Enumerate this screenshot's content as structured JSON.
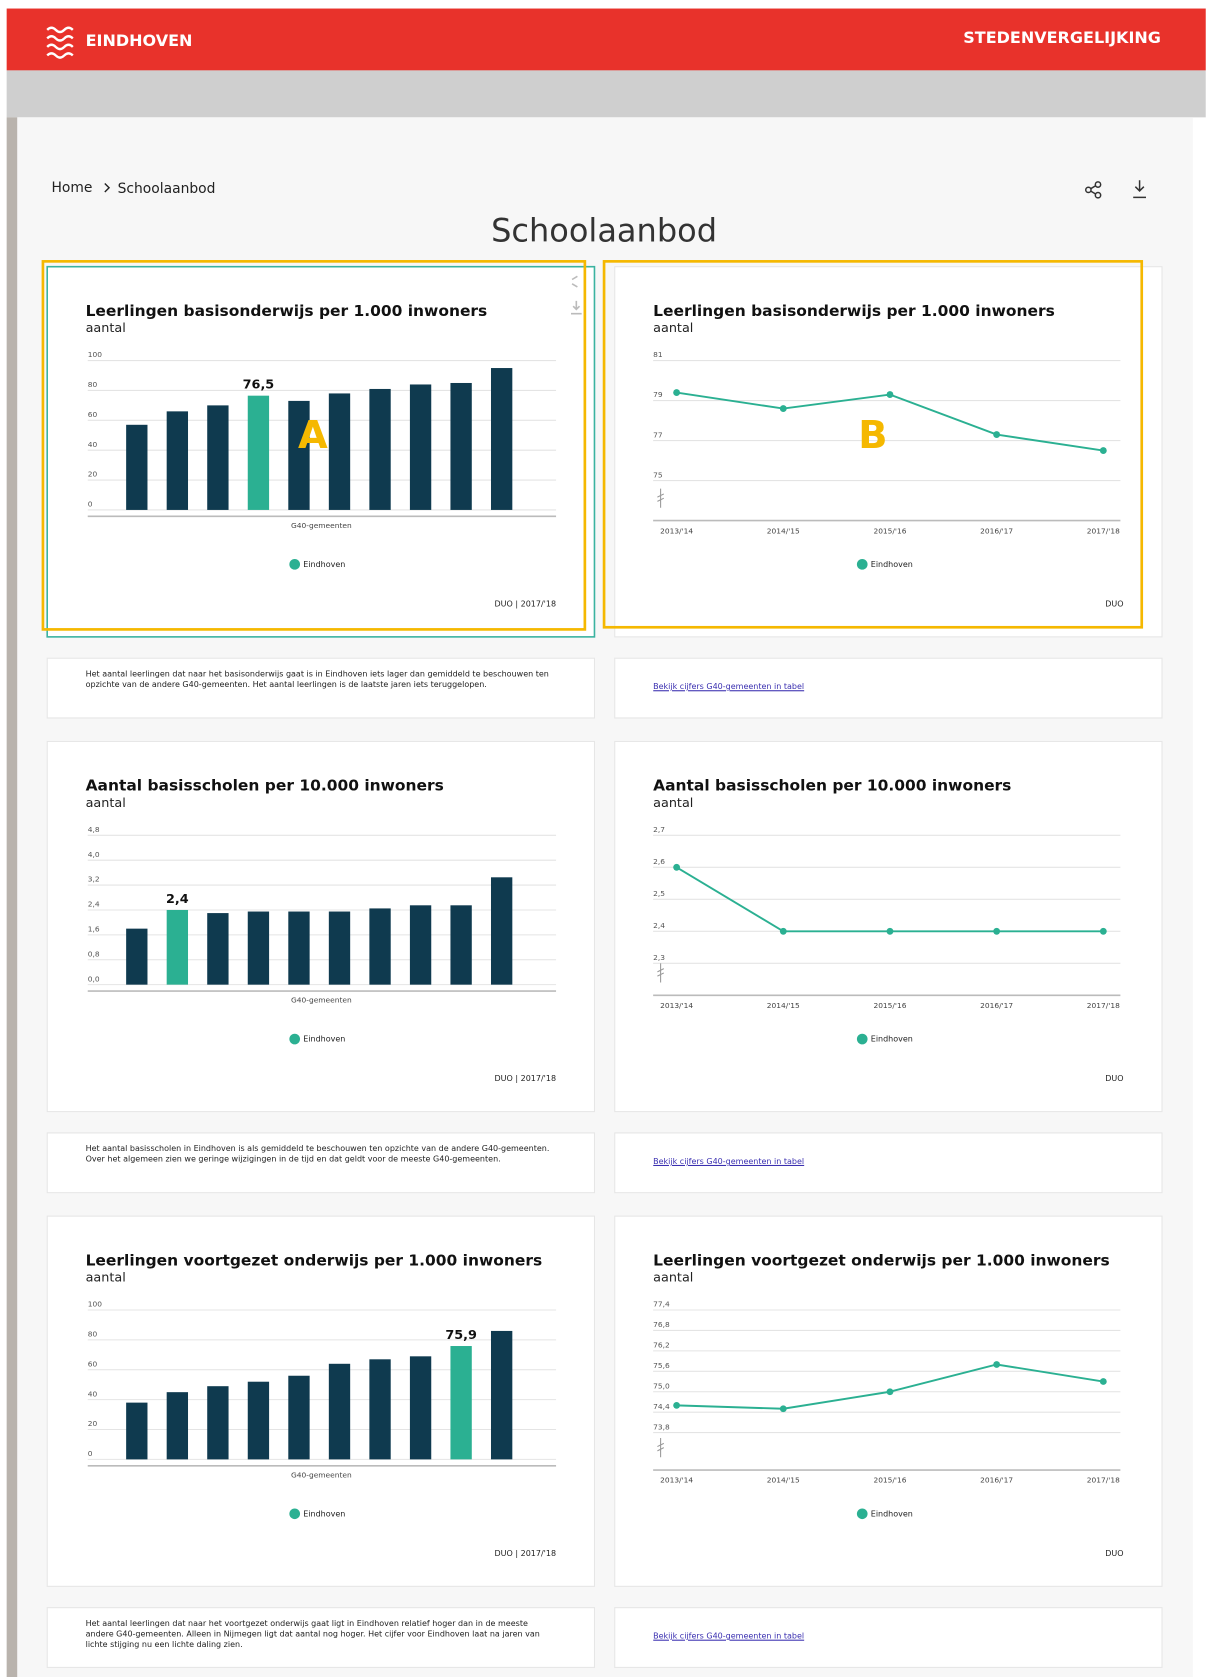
{
  "header": {
    "logo": "EINDHOVEN",
    "nav": "STEDENVERGELIJKING"
  },
  "breadcrumb": [
    "Home",
    "Schoolaanbod"
  ],
  "title": "Schoolaanbod",
  "annotations": [
    "A",
    "B"
  ],
  "chart_data": [
    {
      "type": "bar",
      "title": "Leerlingen basisonderwijs per 1.000 inwoners",
      "subtitle": "aantal",
      "x_label": "G40-gemeenten",
      "legend": "Eindhoven",
      "legend_color": "#2bb092",
      "source": "DUO | 2017/'18",
      "categories": [
        null,
        null,
        null,
        "Eindhoven",
        null,
        null,
        null,
        null,
        null,
        null
      ],
      "values": [
        57,
        66,
        70,
        76.5,
        73,
        78,
        81,
        84,
        85,
        95
      ],
      "value_labels": [
        null,
        null,
        null,
        "76,5",
        null,
        null,
        null,
        null,
        null,
        null
      ],
      "colors": [
        "#0f3a4f",
        "#0f3a4f",
        "#0f3a4f",
        "#2bb092",
        "#0f3a4f",
        "#0f3a4f",
        "#0f3a4f",
        "#0f3a4f",
        "#0f3a4f",
        "#0f3a4f"
      ],
      "ylim": [
        0,
        100
      ],
      "yticks": [
        0,
        20,
        40,
        60,
        80,
        100
      ],
      "grid": true
    },
    {
      "type": "line",
      "title": "Leerlingen basisonderwijs per 1.000 inwoners",
      "subtitle": "aantal",
      "source": "DUO",
      "categories": [
        "2013/'14",
        "2014/'15",
        "2015/'16",
        "2016/'17",
        "2017/'18"
      ],
      "series": [
        {
          "name": "Eindhoven",
          "color": "#2bb092",
          "values": [
            79.4,
            78.6,
            79.3,
            77.3,
            76.5
          ]
        }
      ],
      "ylim": [
        73,
        81
      ],
      "yticks": [
        75,
        77,
        79,
        81
      ],
      "grid": true
    },
    {
      "type": "bar",
      "title": "Aantal basisscholen per 10.000 inwoners",
      "subtitle": "aantal",
      "x_label": "G40-gemeenten",
      "legend": "Eindhoven",
      "legend_color": "#2bb092",
      "source": "DUO | 2017/'18",
      "categories": [
        null,
        "Eindhoven",
        null,
        null,
        null,
        null,
        null,
        null,
        null,
        null
      ],
      "values": [
        1.8,
        2.4,
        2.3,
        2.35,
        2.35,
        2.35,
        2.45,
        2.55,
        2.55,
        3.45
      ],
      "value_labels": [
        null,
        "2,4",
        null,
        null,
        null,
        null,
        null,
        null,
        null,
        null
      ],
      "colors": [
        "#0f3a4f",
        "#2bb092",
        "#0f3a4f",
        "#0f3a4f",
        "#0f3a4f",
        "#0f3a4f",
        "#0f3a4f",
        "#0f3a4f",
        "#0f3a4f",
        "#0f3a4f"
      ],
      "ylim": [
        0,
        4.8
      ],
      "yticks": [
        {
          "value": 0,
          "label": "0,0"
        },
        {
          "value": 0.8,
          "label": "0,8"
        },
        {
          "value": 1.6,
          "label": "1,6"
        },
        {
          "value": 2.4,
          "label": "2,4"
        },
        {
          "value": 3.2,
          "label": "3,2"
        },
        {
          "value": 4,
          "label": "4,0"
        },
        {
          "value": 4.8,
          "label": "4,8"
        }
      ],
      "grid": true
    },
    {
      "type": "line",
      "title": "Aantal basisscholen per 10.000 inwoners",
      "subtitle": "aantal",
      "source": "DUO",
      "categories": [
        "2013/'14",
        "2014/'15",
        "2015/'16",
        "2016/'17",
        "2017/'18"
      ],
      "series": [
        {
          "name": "Eindhoven",
          "color": "#2bb092",
          "values": [
            2.6,
            2.4,
            2.4,
            2.4,
            2.4
          ]
        }
      ],
      "ylim": [
        2.2,
        2.7
      ],
      "yticks": [
        {
          "value": 2.3,
          "label": "2,3"
        },
        {
          "value": 2.4,
          "label": "2,4"
        },
        {
          "value": 2.5,
          "label": "2,5"
        },
        {
          "value": 2.6,
          "label": "2,6"
        },
        {
          "value": 2.7,
          "label": "2,7"
        }
      ],
      "grid": true
    },
    {
      "type": "bar",
      "title": "Leerlingen voortgezet onderwijs per 1.000 inwoners",
      "subtitle": "aantal",
      "x_label": "G40-gemeenten",
      "legend": "Eindhoven",
      "legend_color": "#2bb092",
      "source": "DUO | 2017/'18",
      "categories": [
        null,
        null,
        null,
        null,
        null,
        null,
        null,
        null,
        "Eindhoven",
        null
      ],
      "values": [
        38,
        45,
        49,
        52,
        56,
        64,
        67,
        69,
        75.9,
        86
      ],
      "value_labels": [
        null,
        null,
        null,
        null,
        null,
        null,
        null,
        null,
        "75,9",
        null
      ],
      "colors": [
        "#0f3a4f",
        "#0f3a4f",
        "#0f3a4f",
        "#0f3a4f",
        "#0f3a4f",
        "#0f3a4f",
        "#0f3a4f",
        "#0f3a4f",
        "#2bb092",
        "#0f3a4f"
      ],
      "ylim": [
        0,
        100
      ],
      "yticks": [
        0,
        20,
        40,
        60,
        80,
        100
      ],
      "grid": true
    },
    {
      "type": "line",
      "title": "Leerlingen voortgezet onderwijs per 1.000 inwoners",
      "subtitle": "aantal",
      "source": "DUO",
      "categories": [
        "2013/'14",
        "2014/'15",
        "2015/'16",
        "2016/'17",
        "2017/'18"
      ],
      "series": [
        {
          "name": "Eindhoven",
          "color": "#2bb092",
          "values": [
            74.6,
            74.5,
            75.0,
            75.8,
            75.3
          ]
        }
      ],
      "ylim": [
        72.7,
        77.4
      ],
      "yticks": [
        {
          "value": 73.8,
          "label": "73,8"
        },
        {
          "value": 74.4,
          "label": "74,4"
        },
        {
          "value": 75,
          "label": "75,0"
        },
        {
          "value": 75.6,
          "label": "75,6"
        },
        {
          "value": 76.2,
          "label": "76,2"
        },
        {
          "value": 76.8,
          "label": "76,8"
        },
        {
          "value": 77.4,
          "label": "77,4"
        }
      ],
      "grid": true
    }
  ],
  "descriptions": [
    "Het aantal leerlingen dat naar het basisonderwijs gaat is in Eindhoven iets lager dan gemiddeld te beschouwen ten opzichte van de andere G40-gemeenten. Het aantal leerlingen is de laatste jaren iets teruggelopen.",
    "Het aantal basisscholen in Eindhoven is als gemiddeld te beschouwen ten opzichte van de andere G40-gemeenten. Over het algemeen zien we geringe wijzigingen in de tijd en dat geldt voor de meeste G40-gemeenten.",
    "Het aantal leerlingen dat naar het voortgezet onderwijs gaat ligt in Eindhoven relatief hoger dan in de meeste andere G40-gemeenten. Alleen in Nijmegen ligt dat aantal nog hoger. Het cijfer voor Eindhoven laat na jaren van lichte stijging nu een lichte daling zien."
  ],
  "links": [
    "Bekijk cijfers G40-gemeenten in tabel",
    "Bekijk cijfers G40-gemeenten in tabel",
    "Bekijk cijfers G40-gemeenten in tabel"
  ]
}
